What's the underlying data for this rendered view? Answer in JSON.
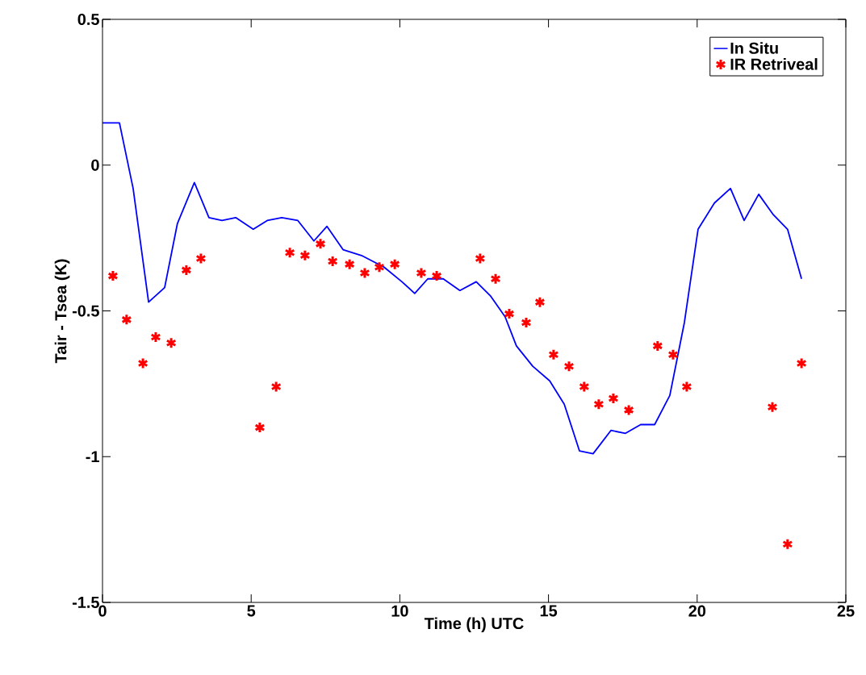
{
  "chart_data": {
    "type": "line",
    "xlabel": "Time (h) UTC",
    "ylabel": "Tair - Tsea (K)",
    "xlim": [
      0,
      25
    ],
    "ylim": [
      -1.5,
      0.5
    ],
    "xticks": [
      0,
      5,
      10,
      15,
      20,
      25
    ],
    "yticks": [
      -1.5,
      -1,
      -0.5,
      0,
      0.5
    ],
    "legend": "top right",
    "series": [
      {
        "name": "In Situ",
        "color": "#0000ff",
        "marker": "none",
        "line_style": "solid",
        "x": [
          0,
          0.57,
          1.03,
          1.55,
          2.09,
          2.52,
          3.09,
          3.58,
          4.02,
          4.48,
          5.07,
          5.54,
          6.03,
          6.57,
          7.11,
          7.55,
          8.09,
          8.71,
          9.47,
          10.07,
          10.5,
          10.94,
          11.46,
          12.02,
          12.57,
          13.06,
          13.54,
          13.92,
          14.47,
          15.04,
          15.53,
          16.04,
          16.5,
          17.1,
          17.59,
          18.1,
          18.57,
          19.08,
          19.57,
          20.03,
          20.58,
          21.12,
          21.58,
          22.07,
          22.56,
          23.04,
          23.51
        ],
        "values": [
          0.145,
          0.145,
          -0.08,
          -0.47,
          -0.42,
          -0.2,
          -0.06,
          -0.18,
          -0.19,
          -0.18,
          -0.22,
          -0.19,
          -0.18,
          -0.19,
          -0.26,
          -0.21,
          -0.29,
          -0.31,
          -0.35,
          -0.4,
          -0.44,
          -0.39,
          -0.39,
          -0.43,
          -0.4,
          -0.45,
          -0.52,
          -0.62,
          -0.69,
          -0.74,
          -0.82,
          -0.98,
          -0.99,
          -0.91,
          -0.92,
          -0.89,
          -0.89,
          -0.79,
          -0.54,
          -0.22,
          -0.13,
          -0.08,
          -0.19,
          -0.1,
          -0.17,
          -0.22,
          -0.39
        ]
      },
      {
        "name": "IR Retriveal",
        "type": "scatter",
        "color": "#ff0000",
        "marker": "cross",
        "x": [
          0.35,
          0.81,
          1.36,
          1.79,
          2.31,
          2.82,
          3.31,
          5.29,
          5.84,
          6.3,
          6.81,
          7.33,
          7.74,
          8.31,
          8.82,
          9.31,
          9.83,
          10.72,
          11.24,
          12.7,
          13.22,
          13.68,
          14.25,
          14.71,
          15.17,
          15.69,
          16.2,
          16.69,
          17.18,
          17.7,
          18.67,
          19.19,
          19.65,
          22.53,
          23.04,
          23.51
        ],
        "values": [
          -0.38,
          -0.53,
          -0.68,
          -0.59,
          -0.61,
          -0.36,
          -0.32,
          -0.9,
          -0.76,
          -0.3,
          -0.31,
          -0.27,
          -0.33,
          -0.34,
          -0.37,
          -0.35,
          -0.34,
          -0.37,
          -0.38,
          -0.32,
          -0.39,
          -0.51,
          -0.54,
          -0.47,
          -0.65,
          -0.69,
          -0.76,
          -0.82,
          -0.8,
          -0.84,
          -0.62,
          -0.65,
          -0.76,
          -0.83,
          -1.3,
          -0.68
        ]
      }
    ]
  }
}
